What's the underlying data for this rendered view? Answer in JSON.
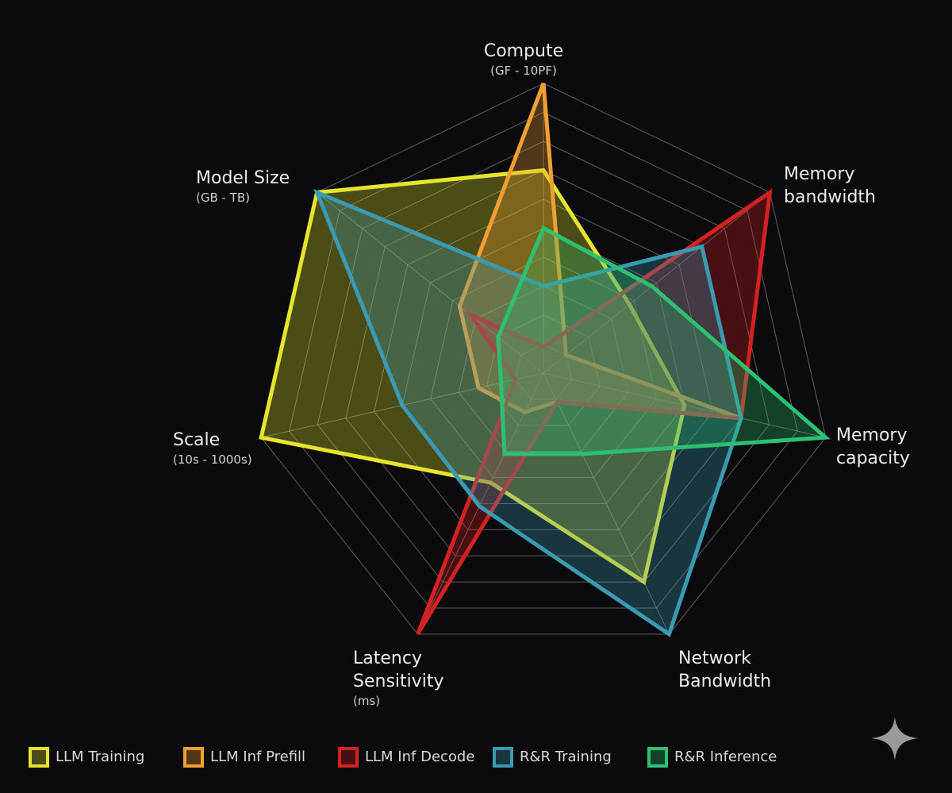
{
  "chart_data": {
    "type": "radar",
    "categories": [
      "Compute",
      "Memory bandwidth",
      "Memory capacity",
      "Network Bandwidth",
      "Latency Sensitivity",
      "Scale",
      "Model Size"
    ],
    "category_units": [
      "(GF - 10PF)",
      null,
      null,
      null,
      "(ms)",
      "(10s - 1000s)",
      "(GB - TB)"
    ],
    "rlim": [
      0,
      10
    ],
    "grid_rings": 10,
    "grid": true,
    "series": [
      {
        "name": "LLM Training",
        "color": "#e6e42c",
        "values": [
          7,
          3.8,
          5,
          8,
          4.2,
          10,
          10
        ]
      },
      {
        "name": "LLM Inf Prefill",
        "color": "#f0a030",
        "values": [
          10,
          1,
          7,
          1.1,
          1.5,
          2.3,
          3.7
        ]
      },
      {
        "name": "LLM Inf Decode",
        "color": "#d42222",
        "values": [
          0.9,
          10,
          7,
          1.1,
          10,
          1,
          3.2
        ]
      },
      {
        "name": "R&R Training",
        "color": "#3a9ab2",
        "values": [
          3,
          7,
          7,
          10,
          5.1,
          5,
          10
        ]
      },
      {
        "name": "R&R Inference",
        "color": "#2ec072",
        "values": [
          5,
          4.8,
          10,
          3.1,
          3.1,
          1.5,
          2
        ]
      }
    ]
  }
}
